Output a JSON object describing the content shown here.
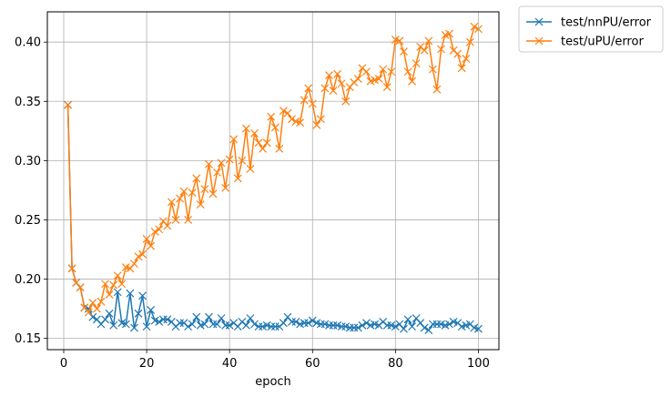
{
  "chart_data": {
    "type": "line",
    "xlabel": "epoch",
    "ylabel": "",
    "xlim": [
      -3.95,
      104.95
    ],
    "ylim": [
      0.1405,
      0.4255
    ],
    "xticks": [
      0,
      20,
      40,
      60,
      80,
      100
    ],
    "yticks": [
      0.15,
      0.2,
      0.25,
      0.3,
      0.35,
      0.4
    ],
    "ytick_labels": [
      "0.15",
      "0.20",
      "0.25",
      "0.30",
      "0.35",
      "0.40"
    ],
    "xtick_labels": [
      "0",
      "20",
      "40",
      "60",
      "80",
      "100"
    ],
    "grid": true,
    "legend_position": "outside-top-right",
    "marker": "x",
    "series": [
      {
        "name": "test/nnPU/error",
        "color": "#1f77b4",
        "x": [
          1,
          2,
          3,
          4,
          5,
          6,
          7,
          8,
          9,
          10,
          11,
          12,
          13,
          14,
          15,
          16,
          17,
          18,
          19,
          20,
          21,
          22,
          23,
          24,
          25,
          26,
          27,
          28,
          29,
          30,
          31,
          32,
          33,
          34,
          35,
          36,
          37,
          38,
          39,
          40,
          41,
          42,
          43,
          44,
          45,
          46,
          47,
          48,
          49,
          50,
          51,
          52,
          53,
          54,
          55,
          56,
          57,
          58,
          59,
          60,
          61,
          62,
          63,
          64,
          65,
          66,
          67,
          68,
          69,
          70,
          71,
          72,
          73,
          74,
          75,
          76,
          77,
          78,
          79,
          80,
          81,
          82,
          83,
          84,
          85,
          86,
          87,
          88,
          89,
          90,
          91,
          92,
          93,
          94,
          95,
          96,
          97,
          98,
          99,
          100
        ],
        "y": [
          0.347,
          0.209,
          0.197,
          0.193,
          0.176,
          0.175,
          0.168,
          0.166,
          0.162,
          0.166,
          0.171,
          0.161,
          0.189,
          0.163,
          0.162,
          0.188,
          0.159,
          0.171,
          0.186,
          0.16,
          0.174,
          0.165,
          0.164,
          0.166,
          0.166,
          0.164,
          0.16,
          0.163,
          0.163,
          0.16,
          0.162,
          0.168,
          0.161,
          0.162,
          0.168,
          0.162,
          0.162,
          0.167,
          0.161,
          0.161,
          0.163,
          0.16,
          0.164,
          0.161,
          0.167,
          0.162,
          0.16,
          0.16,
          0.161,
          0.16,
          0.16,
          0.16,
          0.163,
          0.168,
          0.164,
          0.164,
          0.162,
          0.163,
          0.163,
          0.165,
          0.163,
          0.162,
          0.162,
          0.161,
          0.161,
          0.161,
          0.16,
          0.16,
          0.159,
          0.159,
          0.159,
          0.161,
          0.163,
          0.161,
          0.162,
          0.161,
          0.164,
          0.161,
          0.161,
          0.16,
          0.162,
          0.158,
          0.166,
          0.16,
          0.167,
          0.163,
          0.159,
          0.157,
          0.162,
          0.162,
          0.162,
          0.161,
          0.162,
          0.164,
          0.163,
          0.16,
          0.161,
          0.162,
          0.159,
          0.158
        ]
      },
      {
        "name": "test/uPU/error",
        "color": "#ff7f0e",
        "x": [
          1,
          2,
          3,
          4,
          5,
          6,
          7,
          8,
          9,
          10,
          11,
          12,
          13,
          14,
          15,
          16,
          17,
          18,
          19,
          20,
          21,
          22,
          23,
          24,
          25,
          26,
          27,
          28,
          29,
          30,
          31,
          32,
          33,
          34,
          35,
          36,
          37,
          38,
          39,
          40,
          41,
          42,
          43,
          44,
          45,
          46,
          47,
          48,
          49,
          50,
          51,
          52,
          53,
          54,
          55,
          56,
          57,
          58,
          59,
          60,
          61,
          62,
          63,
          64,
          65,
          66,
          67,
          68,
          69,
          70,
          71,
          72,
          73,
          74,
          75,
          76,
          77,
          78,
          79,
          80,
          81,
          82,
          83,
          84,
          85,
          86,
          87,
          88,
          89,
          90,
          91,
          92,
          93,
          94,
          95,
          96,
          97,
          98,
          99,
          100
        ],
        "y": [
          0.347,
          0.209,
          0.197,
          0.193,
          0.176,
          0.172,
          0.18,
          0.175,
          0.181,
          0.196,
          0.187,
          0.195,
          0.203,
          0.196,
          0.21,
          0.209,
          0.213,
          0.219,
          0.221,
          0.234,
          0.228,
          0.24,
          0.242,
          0.249,
          0.245,
          0.265,
          0.25,
          0.268,
          0.274,
          0.25,
          0.273,
          0.285,
          0.263,
          0.276,
          0.297,
          0.272,
          0.29,
          0.298,
          0.277,
          0.301,
          0.318,
          0.285,
          0.3,
          0.327,
          0.293,
          0.323,
          0.315,
          0.31,
          0.315,
          0.337,
          0.328,
          0.31,
          0.342,
          0.34,
          0.335,
          0.333,
          0.332,
          0.351,
          0.361,
          0.348,
          0.33,
          0.335,
          0.361,
          0.372,
          0.359,
          0.373,
          0.365,
          0.35,
          0.362,
          0.366,
          0.369,
          0.378,
          0.375,
          0.367,
          0.368,
          0.369,
          0.377,
          0.362,
          0.375,
          0.402,
          0.401,
          0.392,
          0.375,
          0.367,
          0.382,
          0.396,
          0.393,
          0.401,
          0.377,
          0.36,
          0.394,
          0.406,
          0.407,
          0.393,
          0.39,
          0.378,
          0.386,
          0.4,
          0.413,
          0.411
        ]
      }
    ]
  }
}
